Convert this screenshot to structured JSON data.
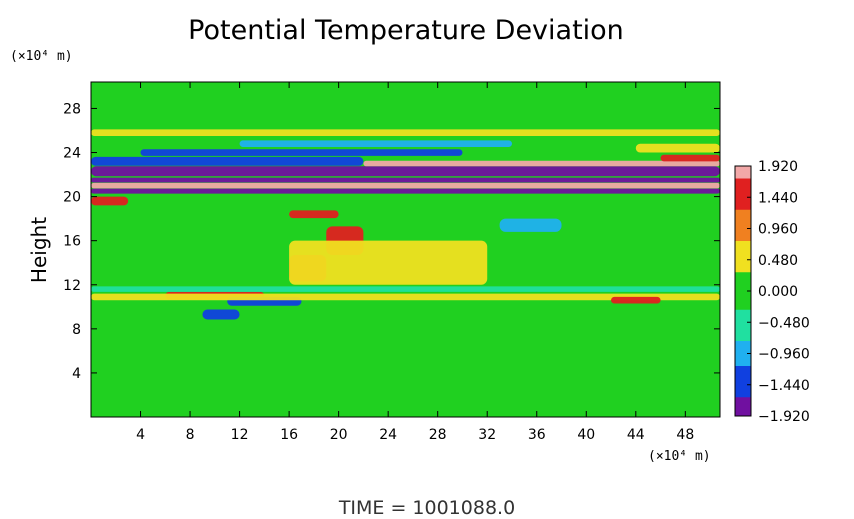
{
  "chart_data": {
    "type": "heatmap",
    "title": "Potential Temperature Deviation",
    "ylabel": "Height",
    "xlabel": "",
    "x_unit": "(×10⁴ m)",
    "y_unit": "(×10⁴ m)",
    "xlim": [
      0,
      50.8
    ],
    "ylim": [
      0,
      30.4
    ],
    "x_ticks": [
      "4",
      "8",
      "12",
      "16",
      "20",
      "24",
      "28",
      "32",
      "36",
      "40",
      "44",
      "48"
    ],
    "y_ticks": [
      "4",
      "8",
      "12",
      "16",
      "20",
      "24",
      "28"
    ],
    "x_tick_values": [
      4,
      8,
      12,
      16,
      20,
      24,
      28,
      32,
      36,
      40,
      44,
      48
    ],
    "y_tick_values": [
      4,
      8,
      12,
      16,
      20,
      24,
      28
    ],
    "colorbar": {
      "labels": [
        "1.920",
        "1.440",
        "0.960",
        "0.480",
        "0.000",
        "−0.480",
        "−0.960",
        "−1.440",
        "−1.920"
      ],
      "values": [
        1.92,
        1.44,
        0.96,
        0.48,
        0.0,
        -0.48,
        -0.96,
        -1.44,
        -1.92
      ],
      "colors": [
        "#f2a8a8",
        "#e02020",
        "#f08020",
        "#f0e020",
        "#20d020",
        "#20e0a0",
        "#20b0f0",
        "#1040e0",
        "#7010a0"
      ]
    },
    "background_value": 0.1,
    "features": [
      {
        "x0": 0,
        "x1": 50.8,
        "yc": 20.5,
        "h": 0.45,
        "v": -1.92
      },
      {
        "x0": 0,
        "x1": 50.8,
        "yc": 21.0,
        "h": 0.5,
        "v": 1.92
      },
      {
        "x0": 0,
        "x1": 50.8,
        "yc": 21.5,
        "h": 0.45,
        "v": -1.92
      },
      {
        "x0": 0,
        "x1": 50.8,
        "yc": 22.3,
        "h": 0.9,
        "v": -1.92
      },
      {
        "x0": 22,
        "x1": 50.8,
        "yc": 23.0,
        "h": 0.5,
        "v": 1.92
      },
      {
        "x0": 0,
        "x1": 22,
        "yc": 23.2,
        "h": 0.8,
        "v": -1.6
      },
      {
        "x0": 4,
        "x1": 30,
        "yc": 24.0,
        "h": 0.6,
        "v": -1.2
      },
      {
        "x0": 12,
        "x1": 34,
        "yc": 24.8,
        "h": 0.6,
        "v": -0.9
      },
      {
        "x0": 0,
        "x1": 3,
        "yc": 19.6,
        "h": 0.8,
        "v": 1.6
      },
      {
        "x0": 44,
        "x1": 50.8,
        "yc": 24.4,
        "h": 0.8,
        "v": 0.5
      },
      {
        "x0": 46,
        "x1": 50.8,
        "yc": 23.5,
        "h": 0.6,
        "v": 1.3
      },
      {
        "x0": 0,
        "x1": 50.8,
        "yc": 25.8,
        "h": 0.6,
        "v": 0.45
      },
      {
        "x0": 16,
        "x1": 20,
        "yc": 18.4,
        "h": 0.7,
        "v": 1.5
      },
      {
        "x0": 19,
        "x1": 22,
        "yc": 16.0,
        "h": 2.6,
        "v": 1.6
      },
      {
        "x0": 16,
        "x1": 19,
        "yc": 13.5,
        "h": 2.4,
        "v": 1.5
      },
      {
        "x0": 6,
        "x1": 14,
        "yc": 11.0,
        "h": 0.7,
        "v": 1.6
      },
      {
        "x0": 11,
        "x1": 17,
        "yc": 10.5,
        "h": 0.8,
        "v": -1.4
      },
      {
        "x0": 9,
        "x1": 12,
        "yc": 9.3,
        "h": 0.9,
        "v": -1.6
      },
      {
        "x0": 0,
        "x1": 50.8,
        "yc": 10.9,
        "h": 0.6,
        "v": 0.55
      },
      {
        "x0": 0,
        "x1": 50.8,
        "yc": 11.6,
        "h": 0.5,
        "v": -0.35
      },
      {
        "x0": 33,
        "x1": 38,
        "yc": 17.4,
        "h": 1.2,
        "v": -1.0
      },
      {
        "x0": 42,
        "x1": 46,
        "yc": 10.6,
        "h": 0.6,
        "v": 1.6
      },
      {
        "x0": 16,
        "x1": 32,
        "yc": 14.0,
        "h": 4.0,
        "v": 0.45
      }
    ]
  },
  "footer": {
    "time_label": "TIME  =  1001088.0"
  }
}
